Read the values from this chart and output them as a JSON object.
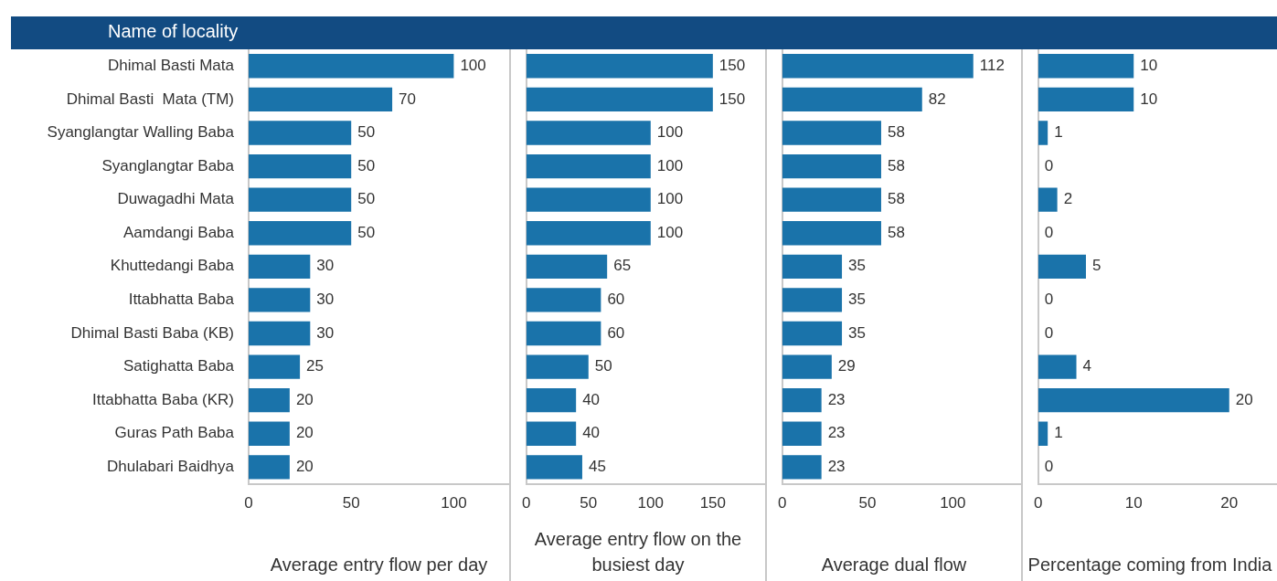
{
  "chart_data": [
    {
      "type": "bar",
      "orientation": "horizontal",
      "ylabel": "Name of locality",
      "xlabel": "Average entry flow per day",
      "categories": [
        "Dhimal Basti Mata",
        "Dhimal Basti  Mata (TM)",
        "Syanglangtar Walling Baba",
        "Syanglangtar Baba",
        "Duwagadhi Mata",
        "Aamdangi Baba",
        "Khuttedangi Baba",
        "Ittabhatta Baba",
        "Dhimal Basti Baba (KB)",
        "Satighatta Baba",
        "Ittabhatta Baba (KR)",
        "Guras Path Baba",
        "Dhulabari Baidhya"
      ],
      "values": [
        100,
        70,
        50,
        50,
        50,
        50,
        30,
        30,
        30,
        25,
        20,
        20,
        20
      ],
      "color": "#1a73aa",
      "xlim": [
        0,
        127
      ],
      "xticks": [
        0,
        50,
        100
      ],
      "data_labels": true
    },
    {
      "type": "bar",
      "orientation": "horizontal",
      "xlabel": "Average entry flow on the busiest day",
      "values": [
        150,
        150,
        100,
        100,
        100,
        100,
        65,
        60,
        60,
        50,
        40,
        40,
        45
      ],
      "color": "#1a73aa",
      "xlim": [
        0,
        192
      ],
      "xticks": [
        0,
        50,
        100,
        150
      ],
      "data_labels": true,
      "tick_labels": "x"
    },
    {
      "type": "bar",
      "orientation": "horizontal",
      "xlabel": "Average dual flow",
      "values": [
        112,
        82,
        58,
        58,
        58,
        58,
        35,
        35,
        35,
        29,
        23,
        23,
        23
      ],
      "color": "#1a73aa",
      "xlim": [
        0,
        140
      ],
      "xticks": [
        0,
        50,
        100
      ],
      "data_labels": true,
      "tick_labels": "x"
    },
    {
      "type": "bar",
      "orientation": "horizontal",
      "xlabel": "Percentage coming from India",
      "values": [
        10,
        10,
        1,
        0,
        2,
        0,
        5,
        0,
        0,
        4,
        20,
        1,
        0
      ],
      "color": "#1a73aa",
      "xlim": [
        0,
        25
      ],
      "xticks": [
        0,
        10,
        20
      ],
      "data_labels": true,
      "tick_labels": "x"
    }
  ]
}
